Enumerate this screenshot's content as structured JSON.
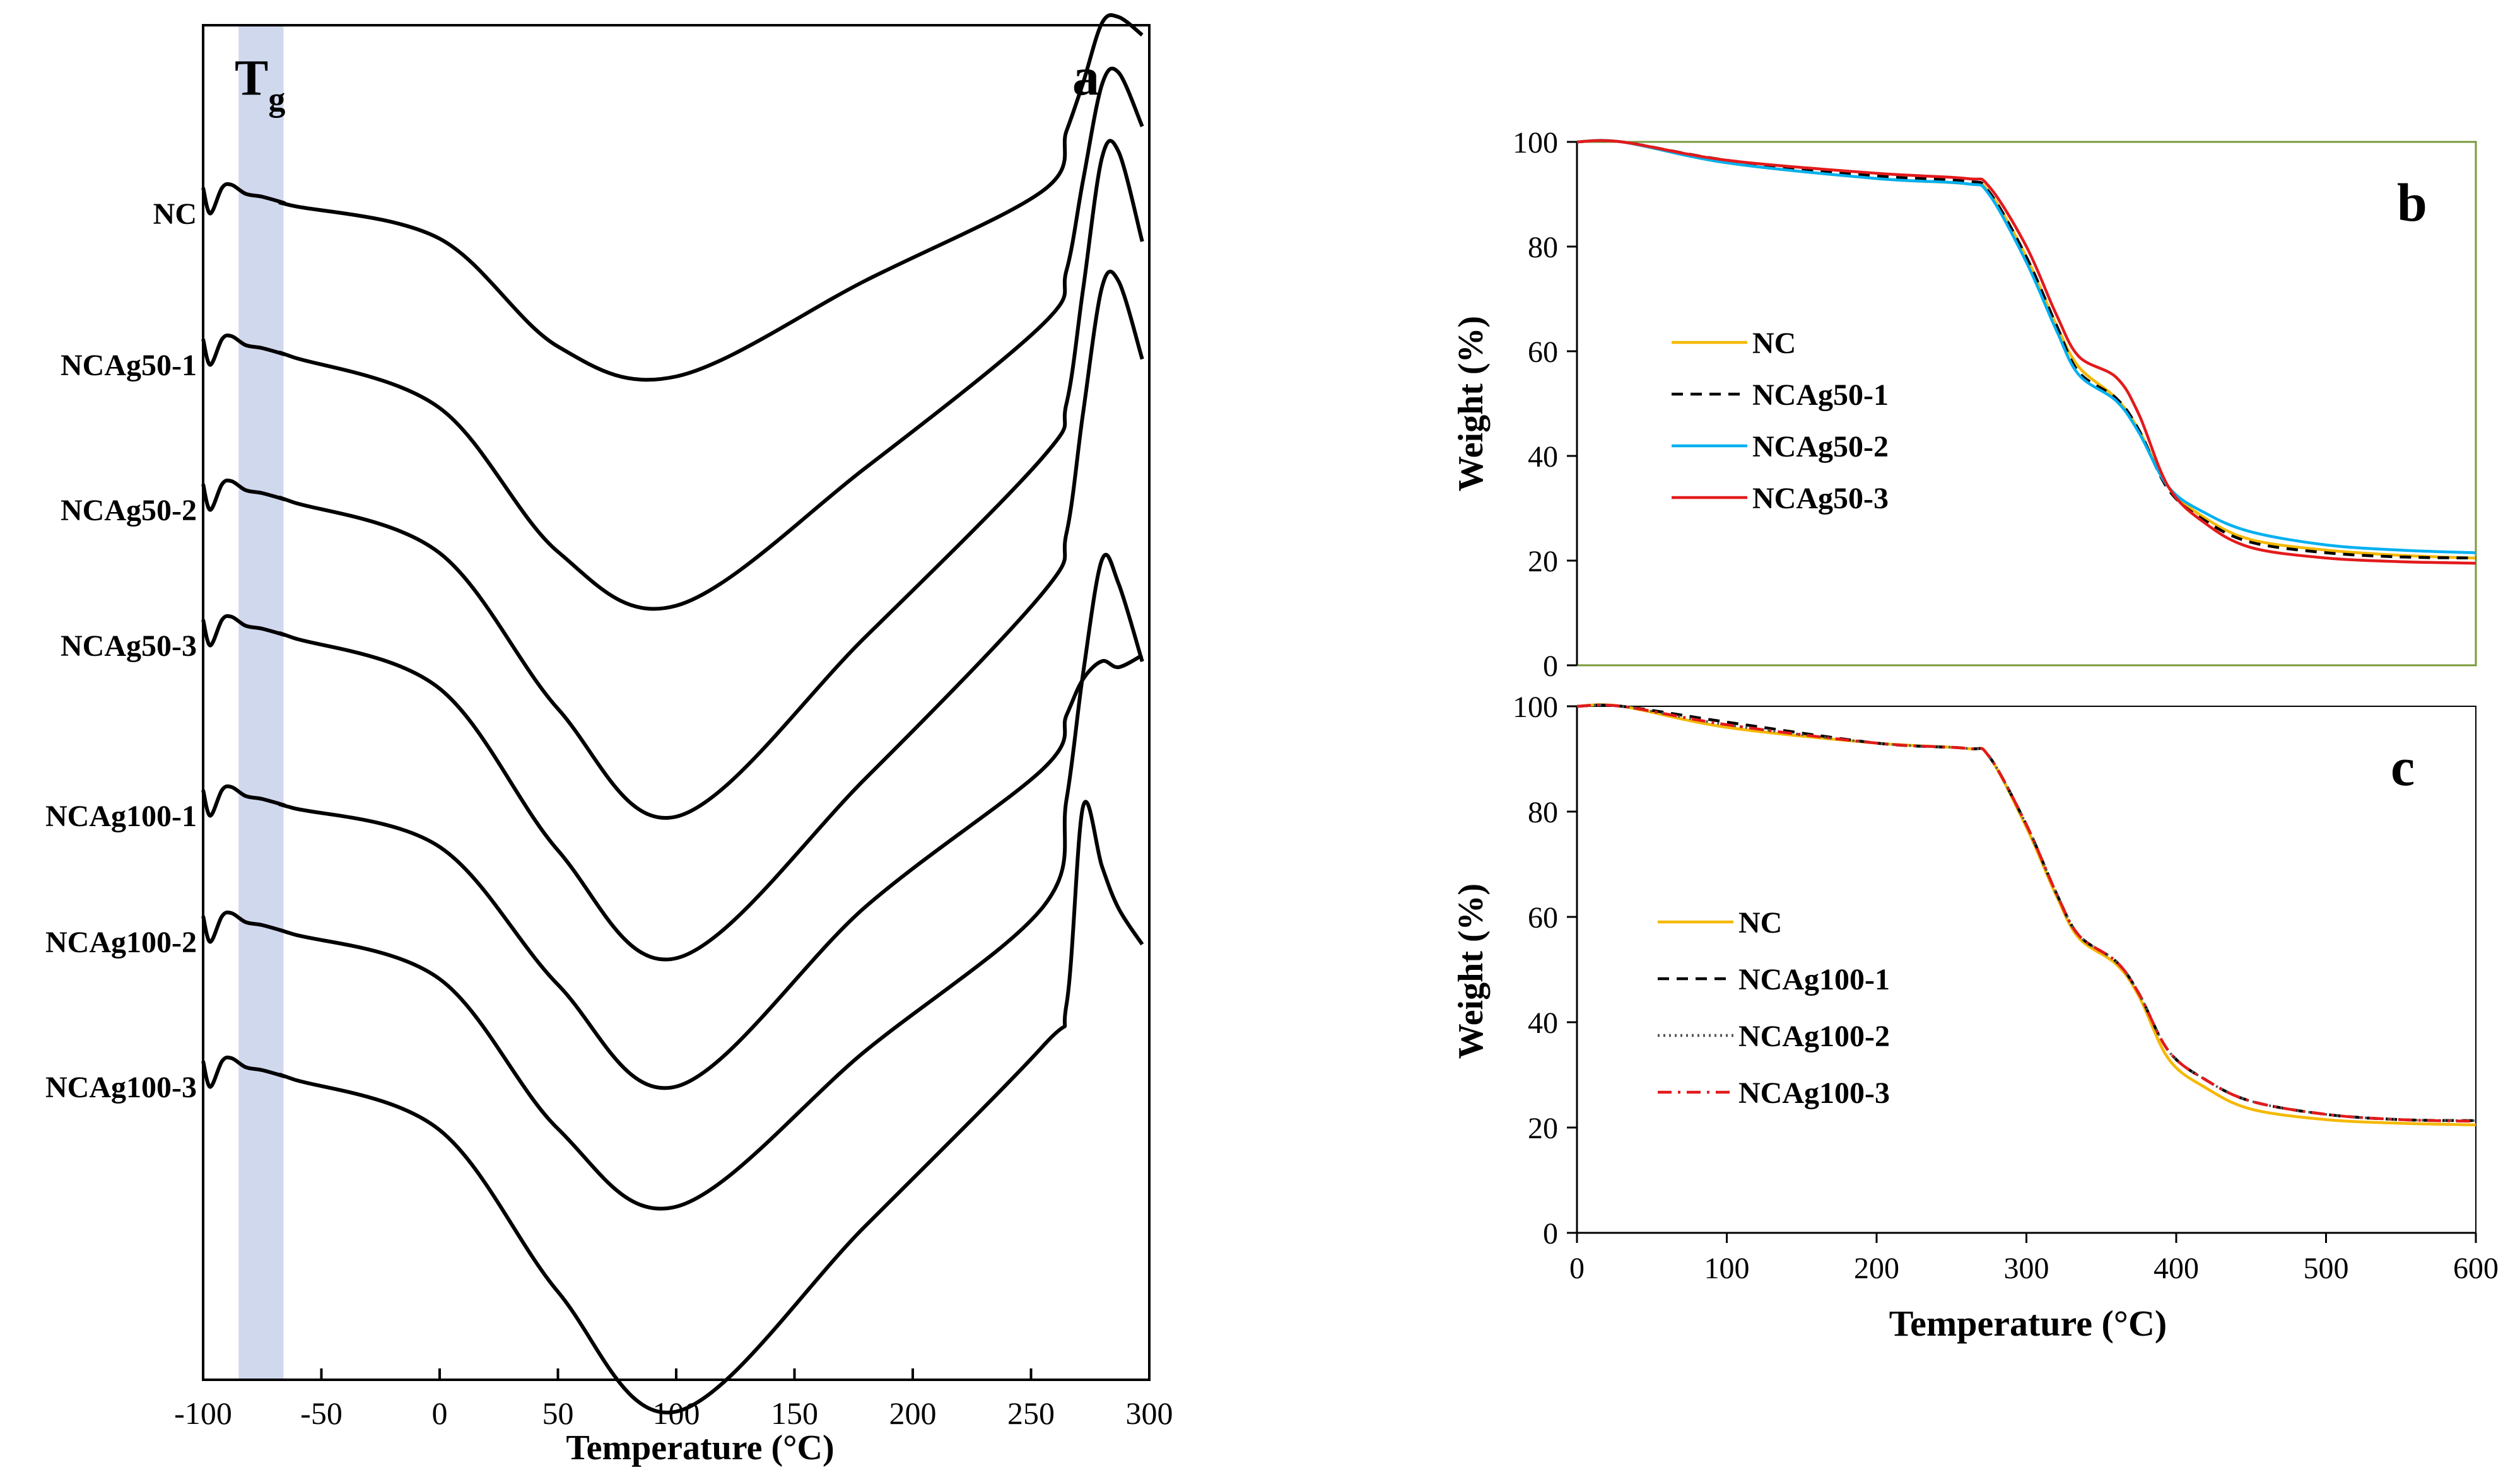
{
  "chart_data": [
    {
      "panel": "a",
      "type": "line",
      "title": "",
      "panel_label": "a",
      "xlabel": "Temperature (°C)",
      "ylabel": "",
      "xlim": [
        -100,
        300
      ],
      "xticks": [
        "-100",
        "-50",
        "0",
        "50",
        "100",
        "150",
        "200",
        "250",
        "300"
      ],
      "band_label_main": "T",
      "band_label_sub": "g",
      "tg_band": [
        -85,
        -66
      ],
      "series": [
        {
          "name": "NC",
          "x": [
            -100,
            -97,
            -92,
            -88,
            -82,
            -75,
            -66,
            -62,
            0,
            50,
            100,
            180,
            255,
            265,
            272,
            280,
            287,
            297
          ],
          "y": [
            0.55,
            0.12,
            0.55,
            0.6,
            0.45,
            0.4,
            0.3,
            0.25,
            -0.3,
            -2.1,
            -2.6,
            -1.0,
            0.5,
            1.5,
            2.3,
            3.3,
            3.4,
            3.1
          ]
        },
        {
          "name": "NCAg50-1",
          "x": [
            -100,
            -97,
            -92,
            -88,
            -82,
            -75,
            -66,
            -62,
            0,
            50,
            100,
            180,
            255,
            265,
            272,
            280,
            287,
            297
          ],
          "y": [
            0.55,
            0.12,
            0.55,
            0.6,
            0.45,
            0.4,
            0.3,
            0.25,
            -0.6,
            -3.0,
            -3.9,
            -1.6,
            0.8,
            1.7,
            3.2,
            4.8,
            5.0,
            4.1
          ]
        },
        {
          "name": "NCAg50-2",
          "x": [
            -100,
            -97,
            -92,
            -88,
            -82,
            -75,
            -66,
            -62,
            0,
            50,
            100,
            180,
            255,
            265,
            272,
            280,
            287,
            297
          ],
          "y": [
            0.55,
            0.12,
            0.55,
            0.6,
            0.45,
            0.4,
            0.3,
            0.25,
            -0.6,
            -3.2,
            -5.0,
            -2.0,
            1.0,
            1.9,
            3.8,
            6.0,
            6.1,
            4.6
          ]
        },
        {
          "name": "NCAg50-3",
          "x": [
            -100,
            -97,
            -92,
            -88,
            -82,
            -75,
            -66,
            -62,
            0,
            50,
            100,
            180,
            255,
            265,
            272,
            280,
            287,
            297
          ],
          "y": [
            0.55,
            0.12,
            0.55,
            0.6,
            0.45,
            0.4,
            0.3,
            0.25,
            -0.6,
            -3.3,
            -5.1,
            -2.1,
            1.0,
            2.0,
            4.0,
            6.1,
            6.2,
            4.9
          ]
        },
        {
          "name": "NCAg100-1",
          "x": [
            -100,
            -97,
            -92,
            -88,
            -82,
            -75,
            -66,
            -62,
            0,
            50,
            100,
            180,
            255,
            265,
            272,
            280,
            287,
            297
          ],
          "y": [
            0.55,
            0.12,
            0.55,
            0.6,
            0.45,
            0.4,
            0.3,
            0.25,
            -0.4,
            -2.7,
            -4.4,
            -1.4,
            0.9,
            1.8,
            2.4,
            2.7,
            2.6,
            2.8
          ]
        },
        {
          "name": "NCAg100-2",
          "x": [
            -100,
            -97,
            -92,
            -88,
            -82,
            -75,
            -66,
            -62,
            0,
            50,
            100,
            180,
            255,
            265,
            272,
            280,
            287,
            297
          ],
          "y": [
            0.55,
            0.12,
            0.55,
            0.6,
            0.45,
            0.4,
            0.3,
            0.25,
            -0.5,
            -3.0,
            -4.3,
            -1.7,
            0.7,
            2.5,
            4.6,
            6.5,
            6.1,
            4.8
          ]
        },
        {
          "name": "NCAg100-3",
          "x": [
            -100,
            -97,
            -92,
            -88,
            -82,
            -75,
            -66,
            -62,
            0,
            50,
            100,
            180,
            255,
            265,
            272,
            280,
            287,
            297
          ],
          "y": [
            0.55,
            0.12,
            0.55,
            0.6,
            0.45,
            0.4,
            0.3,
            0.25,
            -0.6,
            -3.3,
            -5.3,
            -2.2,
            0.8,
            1.5,
            4.8,
            3.8,
            3.1,
            2.5
          ]
        }
      ]
    },
    {
      "panel": "b",
      "type": "line",
      "title": "",
      "panel_label": "b",
      "xlabel": "",
      "ylabel": "Weight (%)",
      "xlim": [
        0,
        600
      ],
      "ylim": [
        0,
        100
      ],
      "yticks": [
        "0",
        "20",
        "40",
        "60",
        "80",
        "100"
      ],
      "legend": [
        "NC",
        "NCAg50-1",
        "NCAg50-2",
        "NCAg50-3"
      ],
      "series": [
        {
          "name": "NC",
          "color": "#f5b800",
          "dash": "solid",
          "x": [
            0,
            30,
            100,
            200,
            260,
            275,
            300,
            320,
            335,
            360,
            375,
            395,
            420,
            450,
            500,
            550,
            600
          ],
          "y": [
            100,
            100,
            96,
            93,
            92,
            90.5,
            78,
            65,
            57,
            51,
            45,
            34,
            28,
            24,
            22,
            21,
            20.5
          ]
        },
        {
          "name": "NCAg50-1",
          "color": "#000000",
          "dash": "dashed",
          "x": [
            0,
            30,
            100,
            200,
            260,
            275,
            300,
            320,
            335,
            360,
            375,
            395,
            420,
            450,
            500,
            550,
            600
          ],
          "y": [
            100,
            100,
            96.5,
            93.5,
            92.5,
            90.5,
            78,
            65,
            56,
            51,
            45,
            33.5,
            27.5,
            23.5,
            21.5,
            20.7,
            20.5
          ]
        },
        {
          "name": "NCAg50-2",
          "color": "#00b0f0",
          "dash": "solid",
          "x": [
            0,
            30,
            100,
            200,
            260,
            275,
            300,
            320,
            335,
            360,
            375,
            395,
            420,
            450,
            500,
            550,
            600
          ],
          "y": [
            100,
            100,
            96,
            93,
            92,
            90,
            77,
            64,
            55.5,
            50.5,
            44.5,
            34,
            29,
            25.5,
            23,
            22,
            21.5
          ]
        },
        {
          "name": "NCAg50-3",
          "color": "#e31a1c",
          "dash": "solid",
          "x": [
            0,
            30,
            100,
            200,
            260,
            275,
            300,
            320,
            335,
            360,
            375,
            395,
            420,
            450,
            500,
            550,
            600
          ],
          "y": [
            100,
            100,
            96.5,
            94,
            93,
            91.5,
            80,
            67,
            59,
            55,
            48,
            34,
            27,
            22.5,
            20.5,
            19.8,
            19.5
          ]
        }
      ]
    },
    {
      "panel": "c",
      "type": "line",
      "title": "",
      "panel_label": "c",
      "xlabel": "Temperature (°C)",
      "ylabel": "Weight (%)",
      "xlim": [
        0,
        600
      ],
      "ylim": [
        0,
        100
      ],
      "xticks": [
        "0",
        "100",
        "200",
        "300",
        "400",
        "500",
        "600"
      ],
      "yticks": [
        "0",
        "20",
        "40",
        "60",
        "80",
        "100"
      ],
      "legend": [
        "NC",
        "NCAg100-1",
        "NCAg100-2",
        "NCAg100-3"
      ],
      "series": [
        {
          "name": "NC",
          "color": "#f5b800",
          "dash": "solid",
          "x": [
            0,
            30,
            100,
            200,
            260,
            275,
            300,
            320,
            335,
            360,
            375,
            395,
            420,
            450,
            500,
            550,
            600
          ],
          "y": [
            100,
            100,
            96,
            93,
            92,
            90.5,
            77,
            64,
            56,
            51,
            45,
            33,
            27.5,
            23.5,
            21.5,
            20.8,
            20.5
          ]
        },
        {
          "name": "NCAg100-1",
          "color": "#000000",
          "dash": "dashed",
          "x": [
            0,
            30,
            100,
            200,
            260,
            275,
            300,
            320,
            335,
            360,
            375,
            395,
            420,
            450,
            500,
            550,
            600
          ],
          "y": [
            100,
            100,
            97,
            93,
            92,
            90.5,
            77.5,
            64.5,
            56.5,
            51.5,
            45.5,
            34.5,
            29,
            25,
            22.5,
            21.5,
            21.3
          ]
        },
        {
          "name": "NCAg100-2",
          "color": "#555555",
          "dash": "dotted",
          "x": [
            0,
            30,
            100,
            200,
            260,
            275,
            300,
            320,
            335,
            360,
            375,
            395,
            420,
            450,
            500,
            550,
            600
          ],
          "y": [
            100,
            100,
            96.5,
            93,
            92,
            90.5,
            77.5,
            64.5,
            56.5,
            51.5,
            45.5,
            34.5,
            29,
            25,
            22.5,
            21.5,
            21.3
          ]
        },
        {
          "name": "NCAg100-3",
          "color": "#e31a1c",
          "dash": "dashdot",
          "x": [
            0,
            30,
            100,
            200,
            260,
            275,
            300,
            320,
            335,
            360,
            375,
            395,
            420,
            450,
            500,
            550,
            600
          ],
          "y": [
            100,
            100,
            96.5,
            93,
            92,
            90.5,
            77.5,
            64.5,
            56.5,
            51.5,
            45.5,
            34.5,
            29,
            25,
            22.5,
            21.5,
            21.2
          ]
        }
      ]
    }
  ]
}
